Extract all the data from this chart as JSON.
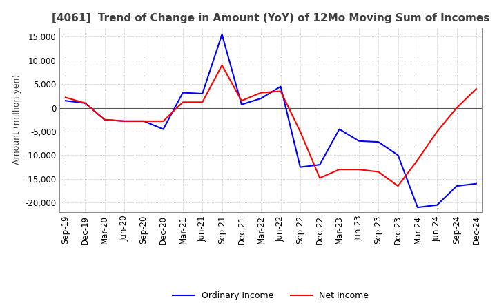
{
  "title": "[4061]  Trend of Change in Amount (YoY) of 12Mo Moving Sum of Incomes",
  "ylabel": "Amount (million yen)",
  "ylim": [
    -22000,
    17000
  ],
  "yticks": [
    -20000,
    -15000,
    -10000,
    -5000,
    0,
    5000,
    10000,
    15000
  ],
  "x_labels": [
    "Sep-19",
    "Dec-19",
    "Mar-20",
    "Jun-20",
    "Sep-20",
    "Dec-20",
    "Mar-21",
    "Jun-21",
    "Sep-21",
    "Dec-21",
    "Mar-22",
    "Jun-22",
    "Sep-22",
    "Dec-22",
    "Mar-23",
    "Jun-23",
    "Sep-23",
    "Dec-23",
    "Mar-24",
    "Jun-24",
    "Sep-24",
    "Dec-24"
  ],
  "ordinary_income": [
    1500,
    1000,
    -2500,
    -2800,
    -2800,
    -4500,
    3200,
    3000,
    15500,
    700,
    2000,
    4500,
    -12500,
    -12000,
    -4500,
    -7000,
    -7200,
    -10000,
    -21000,
    -20500,
    -16500,
    -16000
  ],
  "net_income": [
    2200,
    1000,
    -2500,
    -2800,
    -2800,
    -2800,
    1200,
    1200,
    9000,
    1500,
    3200,
    3500,
    -5000,
    -14800,
    -13000,
    -13000,
    -13500,
    -16500,
    -11000,
    -5000,
    0,
    4000
  ],
  "ordinary_color": "#0000ff",
  "net_color": "#ff0000",
  "background_color": "#ffffff",
  "grid_color": "#aaaaaa",
  "title_color": "#404040",
  "legend_ordinary": "Ordinary Income",
  "legend_net": "Net Income",
  "title_fontsize": 11,
  "tick_fontsize": 8.5,
  "ylabel_fontsize": 9
}
